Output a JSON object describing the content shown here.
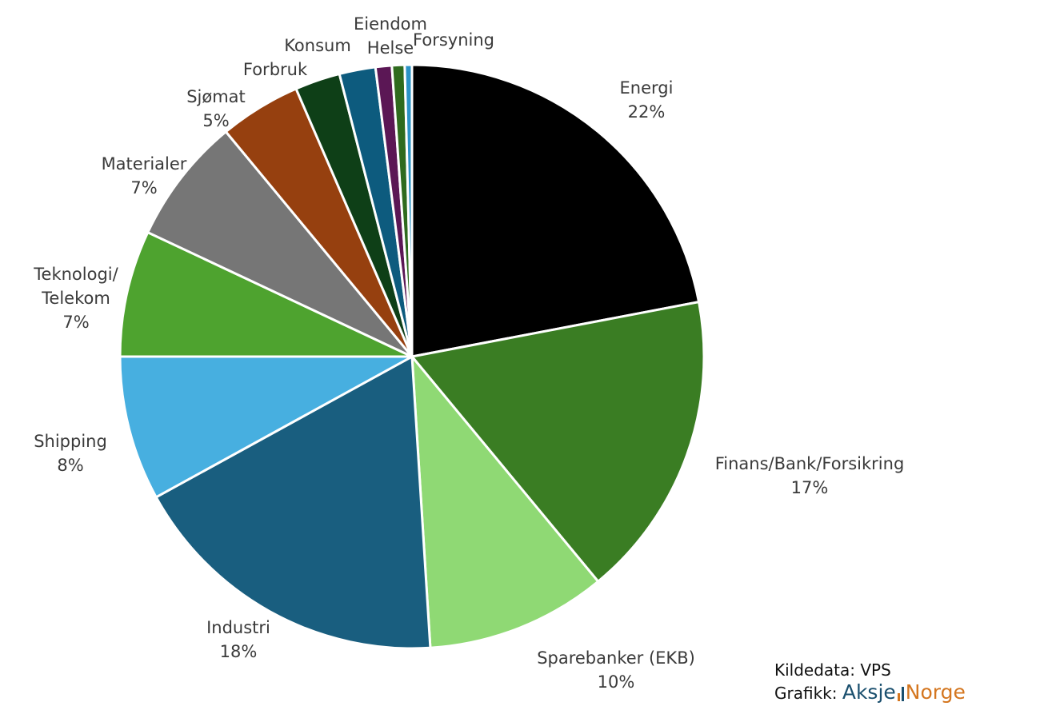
{
  "chart_data": {
    "type": "pie",
    "slices": [
      {
        "label": "Energi",
        "value": 22,
        "value_label": "22%",
        "color": "#000000"
      },
      {
        "label": "Finans/Bank/Forsikring",
        "value": 17,
        "value_label": "17%",
        "color": "#3a7d23"
      },
      {
        "label": "Sparebanker (EKB)",
        "value": 10,
        "value_label": "10%",
        "color": "#8fd974"
      },
      {
        "label": "Industri",
        "value": 18,
        "value_label": "18%",
        "color": "#195e7f"
      },
      {
        "label": "Shipping",
        "value": 8,
        "value_label": "8%",
        "color": "#47afe0"
      },
      {
        "label": "Teknologi/ Telekom",
        "label_lines": [
          "Teknologi/",
          "Telekom"
        ],
        "value": 7,
        "value_label": "7%",
        "color": "#4ea32f"
      },
      {
        "label": "Materialer",
        "value": 7,
        "value_label": "7%",
        "color": "#767676"
      },
      {
        "label": "Sjømat",
        "value": 4.5,
        "value_label": "5%",
        "color": "#96400f"
      },
      {
        "label": "Forbruk",
        "value": 2.5,
        "value_label": "",
        "color": "#0e3f17"
      },
      {
        "label": "Konsum",
        "value": 2,
        "value_label": "",
        "color": "#0d5b7e"
      },
      {
        "label": "Helse",
        "value": 0.9,
        "value_label": "",
        "color": "#5b1755"
      },
      {
        "label": "Eiendom",
        "value": 0.7,
        "value_label": "",
        "color": "#2f6b1e"
      },
      {
        "label": "Forsyning",
        "value": 0.4,
        "value_label": "",
        "color": "#2b93c6"
      }
    ]
  },
  "footer": {
    "source": "Kildedata: VPS",
    "graphic_prefix": "Grafikk:",
    "brand_part1": "Aksje",
    "brand_part2": "Norge"
  }
}
